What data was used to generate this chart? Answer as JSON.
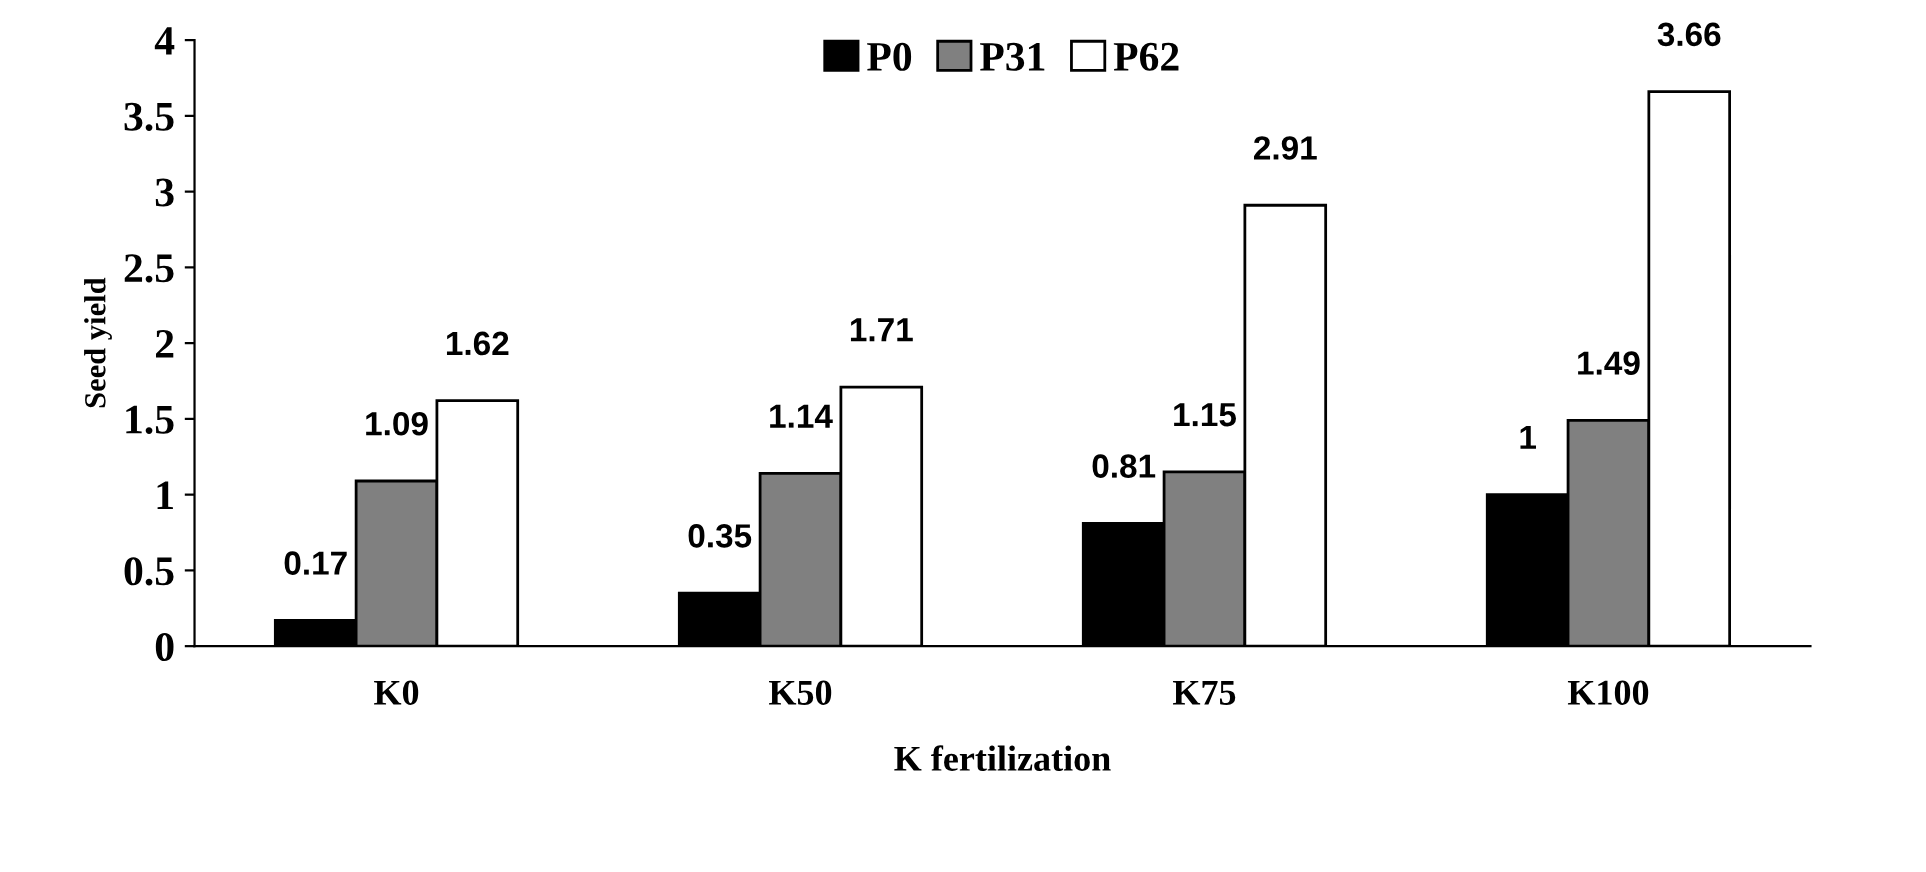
{
  "chart_data": {
    "type": "bar",
    "xlabel": "K fertilization",
    "ylabel": "Seed yield",
    "categories": [
      "K0",
      "K50",
      "K75",
      "K100"
    ],
    "series": [
      {
        "name": "P0",
        "color": "#000000",
        "values": [
          0.17,
          0.35,
          0.81,
          1
        ]
      },
      {
        "name": "P31",
        "color": "#808080",
        "values": [
          1.09,
          1.14,
          1.15,
          1.49
        ]
      },
      {
        "name": "P62",
        "color": "#ffffff",
        "values": [
          1.62,
          1.71,
          2.91,
          3.66
        ]
      }
    ],
    "ylim": [
      0,
      4
    ],
    "yticks": [
      0,
      0.5,
      1,
      1.5,
      2,
      2.5,
      3,
      3.5,
      4
    ],
    "data_labels": true,
    "grid": false,
    "legend": "top"
  }
}
